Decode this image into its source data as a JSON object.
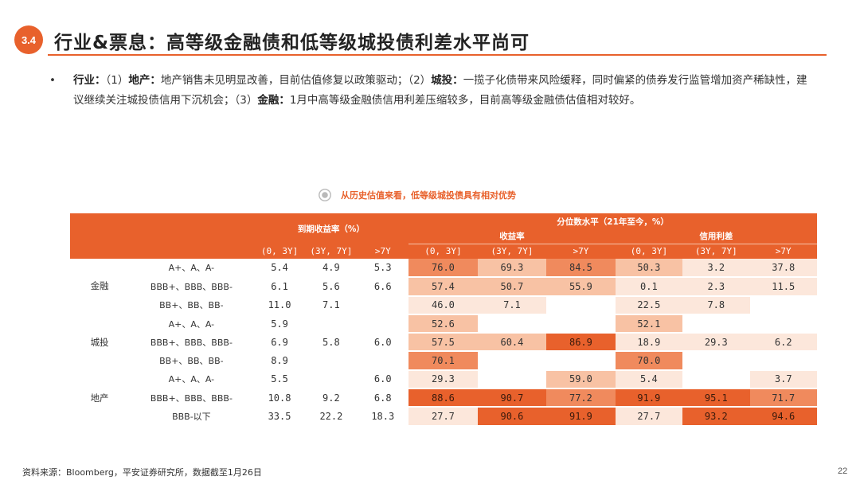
{
  "header": {
    "section_number": "3.4",
    "title": "行业&票息：高等级金融债和低等级城投债利差水平尚可"
  },
  "bullet": {
    "marker": "•",
    "label_industry": "行业：",
    "item1_num": "（1）",
    "item1_label": "地产：",
    "item1_text": "地产销售未见明显改善，目前估值修复以政策驱动；",
    "item2_num": "（2）",
    "item2_label": "城投：",
    "item2_text": "一揽子化债带来风险缓释，同时偏紧的债券发行监管增加资产稀缺性，建议继续关注城投债信用下沉机会；",
    "item3_num": "（3）",
    "item3_label": "金融：",
    "item3_text": "1月中高等级金融债信用利差压缩较多，目前高等级金融债估值相对较好。"
  },
  "figure": {
    "caption": "从历史估值来看，低等级城投债具有相对优势",
    "icon": "target-icon"
  },
  "table": {
    "group_ytm": "到期收益率（%）",
    "group_pct": "分位数水平（21年至今，%）",
    "sub_yield": "收益率",
    "sub_spread": "信用利差",
    "tenors": [
      "(0, 3Y]",
      "(3Y, 7Y]",
      ">7Y"
    ],
    "sectors": [
      {
        "name": "金融",
        "rows": [
          {
            "rating": "A+、A、A-",
            "ytm": [
              "5.4",
              "4.9",
              "5.3"
            ],
            "yield_pct": [
              "76.0",
              "69.3",
              "84.5"
            ],
            "spread_pct": [
              "50.3",
              "3.2",
              "37.8"
            ]
          },
          {
            "rating": "BBB+、BBB、BBB-",
            "ytm": [
              "6.1",
              "5.6",
              "6.6"
            ],
            "yield_pct": [
              "57.4",
              "50.7",
              "55.9"
            ],
            "spread_pct": [
              "0.1",
              "2.3",
              "11.5"
            ]
          },
          {
            "rating": "BB+、BB、BB-",
            "ytm": [
              "11.0",
              "7.1",
              ""
            ],
            "yield_pct": [
              "46.0",
              "7.1",
              ""
            ],
            "spread_pct": [
              "22.5",
              "7.8",
              ""
            ]
          }
        ]
      },
      {
        "name": "城投",
        "rows": [
          {
            "rating": "A+、A、A-",
            "ytm": [
              "5.9",
              "",
              ""
            ],
            "yield_pct": [
              "52.6",
              "",
              ""
            ],
            "spread_pct": [
              "52.1",
              "",
              ""
            ]
          },
          {
            "rating": "BBB+、BBB、BBB-",
            "ytm": [
              "6.9",
              "5.8",
              "6.0"
            ],
            "yield_pct": [
              "57.5",
              "60.4",
              "86.9"
            ],
            "spread_pct": [
              "18.9",
              "29.3",
              "6.2"
            ]
          },
          {
            "rating": "BB+、BB、BB-",
            "ytm": [
              "8.9",
              "",
              ""
            ],
            "yield_pct": [
              "70.1",
              "",
              ""
            ],
            "spread_pct": [
              "70.0",
              "",
              ""
            ]
          }
        ]
      },
      {
        "name": "地产",
        "rows": [
          {
            "rating": "A+、A、A-",
            "ytm": [
              "5.5",
              "",
              "6.0"
            ],
            "yield_pct": [
              "29.3",
              "",
              "59.0"
            ],
            "spread_pct": [
              "5.4",
              "",
              "3.7"
            ]
          },
          {
            "rating": "BBB+、BBB、BBB-",
            "ytm": [
              "10.8",
              "9.2",
              "6.8"
            ],
            "yield_pct": [
              "88.6",
              "90.7",
              "77.2"
            ],
            "spread_pct": [
              "91.9",
              "95.1",
              "71.7"
            ]
          },
          {
            "rating": "BBB-以下",
            "ytm": [
              "33.5",
              "22.2",
              "18.3"
            ],
            "yield_pct": [
              "27.7",
              "90.6",
              "91.9"
            ],
            "spread_pct": [
              "27.7",
              "93.2",
              "94.6"
            ]
          }
        ]
      }
    ]
  },
  "colors": {
    "accent": "#e8612c",
    "heat_low": "#fce7db",
    "heat_mid": "#f8c2a4",
    "heat_high": "#e8612c",
    "stripe": "#fef0e8"
  },
  "footer": {
    "source": "资料来源：Bloomberg，平安证券研究所，数据截至1月26日",
    "page": "22"
  }
}
